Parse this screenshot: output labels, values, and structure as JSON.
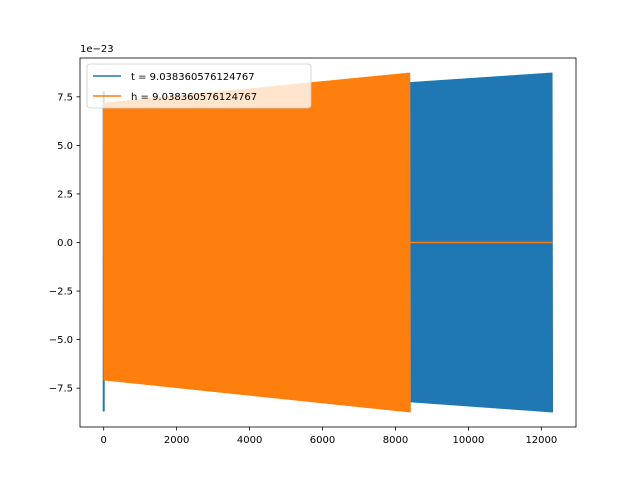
{
  "chart_data": {
    "type": "line",
    "title": "",
    "xlabel": "",
    "ylabel": "",
    "y_offset_label": "1e−23",
    "xlim": [
      -650,
      12950
    ],
    "ylim": [
      -9.5,
      9.5
    ],
    "x_ticks": [
      {
        "value": 0,
        "label": "0"
      },
      {
        "value": 2000,
        "label": "2000"
      },
      {
        "value": 4000,
        "label": "4000"
      },
      {
        "value": 6000,
        "label": "6000"
      },
      {
        "value": 8000,
        "label": "8000"
      },
      {
        "value": 10000,
        "label": "10000"
      },
      {
        "value": 12000,
        "label": "12000"
      }
    ],
    "y_ticks": [
      {
        "value": -7.5,
        "label": "−7.5"
      },
      {
        "value": -5.0,
        "label": "−5.0"
      },
      {
        "value": -2.5,
        "label": "−2.5"
      },
      {
        "value": 0.0,
        "label": "0.0"
      },
      {
        "value": 2.5,
        "label": "2.5"
      },
      {
        "value": 5.0,
        "label": "5.0"
      },
      {
        "value": 7.5,
        "label": "7.5"
      }
    ],
    "grid": false,
    "legend_position": "upper-left",
    "series": [
      {
        "name": "t = 9.038360576124767",
        "color": "#1f77b4",
        "x_range": [
          0,
          12300
        ],
        "upper_envelope": [
          {
            "x": 0,
            "y": 7.2
          },
          {
            "x": 12300,
            "y": 8.75
          }
        ],
        "lower_envelope": [
          {
            "x": 0,
            "y": -7.1
          },
          {
            "x": 12300,
            "y": -8.75
          }
        ],
        "initial_spike": [
          -8.7,
          7.8
        ]
      },
      {
        "name": "h = 9.038360576124767",
        "color": "#ff7f0e",
        "x_range": [
          0,
          8400
        ],
        "upper_envelope": [
          {
            "x": 0,
            "y": 7.2
          },
          {
            "x": 8400,
            "y": 8.75
          }
        ],
        "lower_envelope": [
          {
            "x": 0,
            "y": -7.1
          },
          {
            "x": 8400,
            "y": -8.75
          }
        ],
        "tail_x_range": [
          8400,
          12300
        ],
        "tail_value": 0.0
      }
    ]
  }
}
